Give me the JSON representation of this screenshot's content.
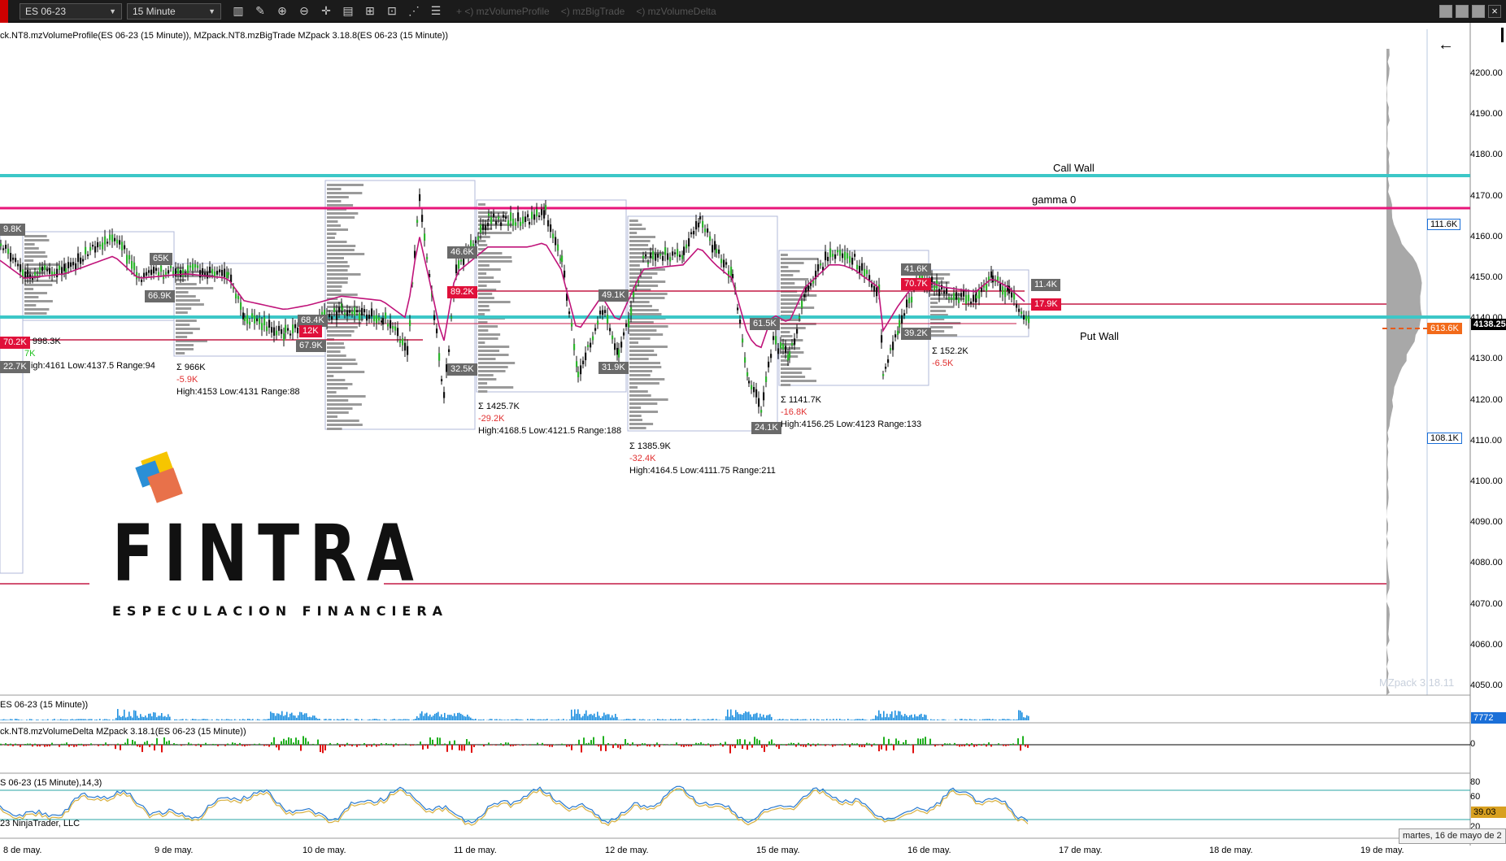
{
  "toolbar": {
    "instrument": "ES 06-23",
    "interval": "15 Minute",
    "indicators": [
      "+ <) mzVolumeProfile",
      "<) mzBigTrade",
      "<) mzVolumeDelta"
    ]
  },
  "chart": {
    "indicator_caption": "ck.NT8.mzVolumeProfile(ES 06-23 (15 Minute)), MZpack.NT8.mzBigTrade MZpack 3.18.8(ES 06-23 (15 Minute))",
    "watermark": "MZpack 3.18.11",
    "levels": {
      "call_wall": "Call Wall",
      "gamma_zero": "gamma 0",
      "put_wall": "Put Wall"
    },
    "price_axis": [
      "4200.00",
      "4190.00",
      "4180.00",
      "4170.00",
      "4160.00",
      "4150.00",
      "4140.00",
      "4130.00",
      "4120.00",
      "4110.00",
      "4100.00",
      "4090.00",
      "4080.00",
      "4070.00",
      "4060.00",
      "4050.00"
    ],
    "current_price": "4138.25",
    "vp_tags": {
      "high": "111.6K",
      "poc": "613.6K",
      "low": "108.1K"
    },
    "dates": [
      "8 de may.",
      "9 de may.",
      "10 de may.",
      "11 de may.",
      "12 de may.",
      "15 de may.",
      "16 de may.",
      "17 de may.",
      "18 de may.",
      "19 de may."
    ],
    "sessions": [
      {
        "sum": "Σ 998.3K",
        "delta": "7K",
        "range": "High:4161 Low:4137.5 Range:94"
      },
      {
        "sum": "Σ 966K",
        "delta": "-5.9K",
        "range": "High:4153 Low:4131 Range:88"
      },
      {
        "sum": "Σ 1425.7K",
        "delta": "-29.2K",
        "range": "High:4168.5 Low:4121.5 Range:188"
      },
      {
        "sum": "Σ 1385.9K",
        "delta": "-32.4K",
        "range": "High:4164.5 Low:4111.75 Range:211"
      },
      {
        "sum": "Σ 1141.7K",
        "delta": "-16.8K",
        "range": "High:4156.25 Low:4123 Range:133"
      },
      {
        "sum": "Σ 152.2K",
        "delta": "-6.5K",
        "range": ""
      }
    ],
    "bigtrade_tags": [
      "9.8K",
      "65K",
      "66.9K",
      "70.2K",
      "22.7K",
      "68.4K",
      "12K",
      "67.9K",
      "46.6K",
      "89.2K",
      "32.5K",
      "49.1K",
      "31.9K",
      "61.5K",
      "24.1K",
      "41.6K",
      "70.7K",
      "39.2K",
      "11.4K",
      "17.9K"
    ]
  },
  "logo": {
    "name": "FINTRA",
    "tagline": "ESPECULACION FINANCIERA",
    "colors": [
      "#f6c500",
      "#2a8fd6",
      "#e8714a"
    ]
  },
  "volume_panel": {
    "title": "ES 06-23 (15 Minute))",
    "value": "7772"
  },
  "delta_panel": {
    "title": "ck.NT8.mzVolumeDelta MZpack 3.18.1(ES 06-23 (15 Minute))",
    "zero": "0"
  },
  "stoch_panel": {
    "title": "S 06-23 (15 Minute),14,3)",
    "levels": [
      "80",
      "60",
      "20"
    ],
    "value": "39.03",
    "copyright": "23 NinjaTrader, LLC"
  },
  "tooltip": "martes, 16 de mayo de 2"
}
